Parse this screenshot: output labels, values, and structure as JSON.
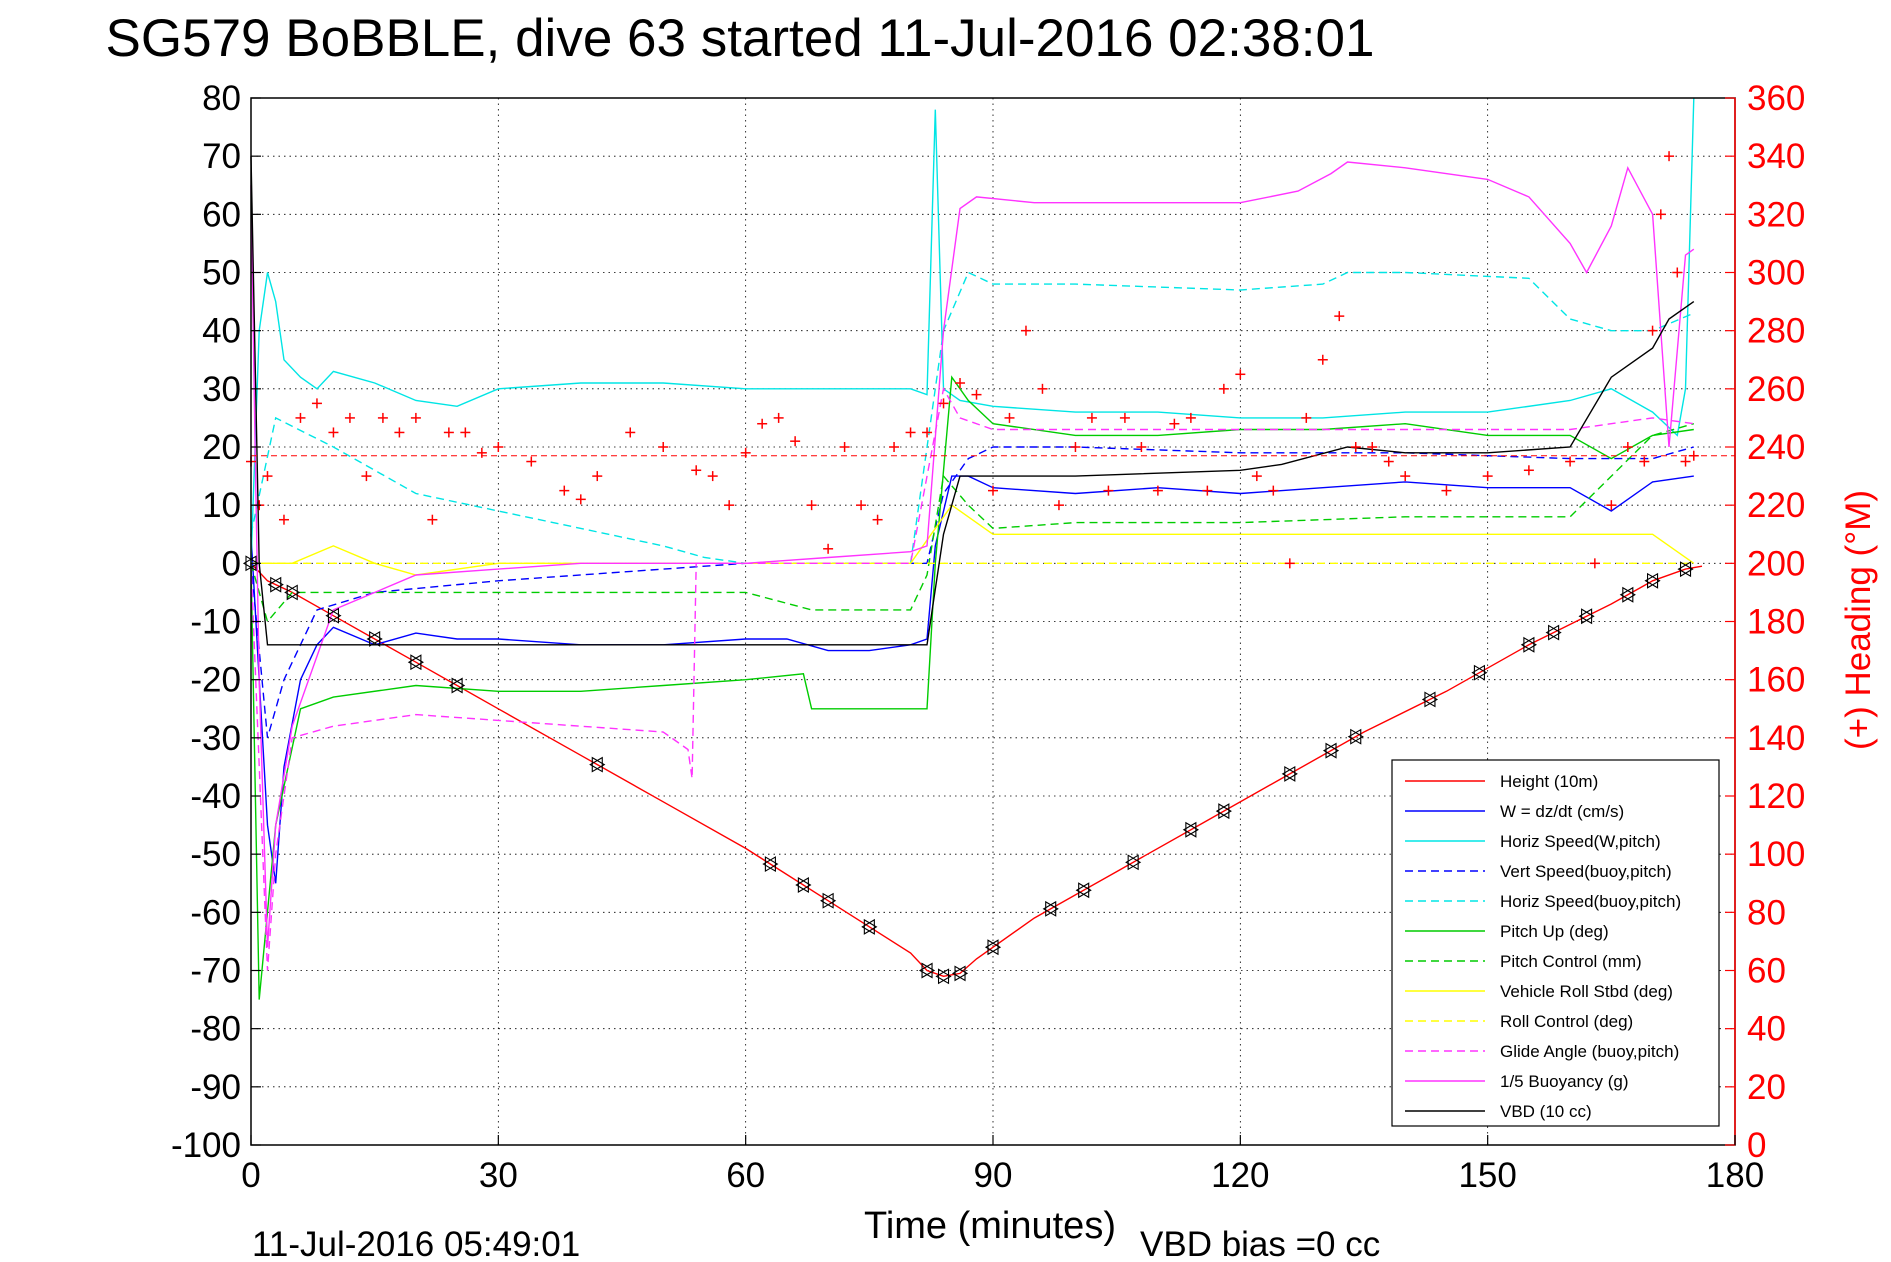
{
  "chart_data": {
    "type": "line",
    "title": "SG579 BoBBLE, dive 63 started 11-Jul-2016 02:38:01",
    "xlabel": "Time (minutes)",
    "ylabel_right": "(+) Heading (°M)",
    "footer_left": "11-Jul-2016 05:49:01",
    "footer_right": "VBD bias =0 cc",
    "xlim": [
      0,
      180
    ],
    "ylim": [
      -100,
      80
    ],
    "ylim_right": [
      0,
      360
    ],
    "x_ticks": [
      "0",
      "30",
      "60",
      "90",
      "120",
      "150",
      "180"
    ],
    "y_ticks": [
      "80",
      "70",
      "60",
      "50",
      "40",
      "30",
      "20",
      "10",
      "0",
      "-10",
      "-20",
      "-30",
      "-40",
      "-50",
      "-60",
      "-70",
      "-80",
      "-90",
      "-100"
    ],
    "y_ticks_right": [
      "360",
      "340",
      "320",
      "300",
      "280",
      "260",
      "240",
      "220",
      "200",
      "180",
      "160",
      "140",
      "120",
      "100",
      "80",
      "60",
      "40",
      "20",
      "0"
    ],
    "grid": true,
    "legend_position": "bottom-right",
    "series": [
      {
        "name": "Height (10m)",
        "color": "#ff0000",
        "style": "solid",
        "x": [
          0,
          2,
          5,
          10,
          15,
          20,
          25,
          30,
          40,
          50,
          60,
          70,
          80,
          82,
          84,
          86,
          88,
          95,
          105,
          115,
          125,
          135,
          145,
          155,
          165,
          170,
          174,
          176
        ],
        "y": [
          0,
          -3,
          -5,
          -9,
          -13,
          -17,
          -21,
          -25,
          -33,
          -41,
          -49,
          -58,
          -67,
          -70,
          -71,
          -70.5,
          -68,
          -61,
          -53,
          -45,
          -37,
          -29,
          -22,
          -14,
          -7,
          -3,
          -1,
          -0.5
        ]
      },
      {
        "name": "W = dz/dt (cm/s)",
        "color": "#0000ff",
        "style": "solid",
        "x": [
          0,
          1,
          2,
          3,
          4,
          6,
          8,
          10,
          15,
          20,
          25,
          30,
          40,
          50,
          60,
          65,
          70,
          75,
          80,
          82,
          83,
          85,
          87,
          90,
          100,
          110,
          120,
          130,
          140,
          150,
          160,
          165,
          170,
          175
        ],
        "y": [
          5,
          -20,
          -45,
          -55,
          -35,
          -20,
          -14,
          -11,
          -14,
          -12,
          -13,
          -13,
          -14,
          -14,
          -13,
          -13,
          -15,
          -15,
          -14,
          -13,
          3,
          15,
          15,
          13,
          12,
          13,
          12,
          13,
          14,
          13,
          13,
          9,
          14,
          15
        ]
      },
      {
        "name": "Horiz Speed(W,pitch)",
        "color": "#00e5e5",
        "style": "solid",
        "x": [
          0,
          1,
          2,
          3,
          4,
          6,
          8,
          10,
          15,
          20,
          25,
          30,
          40,
          50,
          60,
          70,
          80,
          82,
          83,
          84,
          86,
          90,
          100,
          110,
          120,
          130,
          140,
          150,
          160,
          165,
          170,
          173,
          174,
          175
        ],
        "y": [
          0,
          40,
          50,
          45,
          35,
          32,
          30,
          33,
          31,
          28,
          27,
          30,
          31,
          31,
          30,
          30,
          30,
          29,
          78,
          30,
          28,
          27,
          26,
          26,
          25,
          25,
          26,
          26,
          28,
          30,
          26,
          22,
          30,
          80
        ]
      },
      {
        "name": "Vert Speed(buoy,pitch)",
        "color": "#0000ff",
        "style": "dashed",
        "x": [
          0,
          2,
          4,
          8,
          15,
          30,
          50,
          60,
          70,
          80,
          82,
          84,
          87,
          90,
          100,
          120,
          140,
          160,
          170,
          175
        ],
        "y": [
          0,
          -30,
          -20,
          -8,
          -5,
          -3,
          -1,
          0,
          0,
          0,
          0,
          12,
          18,
          20,
          20,
          19,
          19,
          18,
          18,
          20
        ]
      },
      {
        "name": "Horiz Speed(buoy,pitch)",
        "color": "#00e5e5",
        "style": "dashed",
        "x": [
          0,
          3,
          10,
          20,
          30,
          40,
          50,
          55,
          60,
          80,
          84,
          87,
          90,
          100,
          120,
          130,
          133,
          140,
          155,
          160,
          165,
          170,
          175
        ],
        "y": [
          5,
          25,
          20,
          12,
          9,
          6,
          3,
          1,
          0,
          0,
          40,
          50,
          48,
          48,
          47,
          48,
          50,
          50,
          49,
          42,
          40,
          40,
          43
        ]
      },
      {
        "name": "Pitch Up (deg)",
        "color": "#00cc00",
        "style": "solid",
        "x": [
          0,
          1,
          3,
          6,
          10,
          20,
          30,
          40,
          50,
          60,
          67,
          68,
          75,
          82,
          83,
          85,
          87,
          90,
          100,
          110,
          120,
          130,
          140,
          150,
          160,
          165,
          170,
          175
        ],
        "y": [
          0,
          -75,
          -45,
          -25,
          -23,
          -21,
          -22,
          -22,
          -21,
          -20,
          -19,
          -25,
          -25,
          -25,
          0,
          32,
          28,
          24,
          22,
          22,
          23,
          23,
          24,
          22,
          22,
          18,
          22,
          23
        ]
      },
      {
        "name": "Pitch Control (mm)",
        "color": "#00cc00",
        "style": "dashed",
        "x": [
          0,
          2,
          5,
          20,
          40,
          60,
          68,
          80,
          82,
          84,
          87,
          90,
          100,
          120,
          140,
          160,
          170,
          175
        ],
        "y": [
          0,
          -10,
          -5,
          -5,
          -5,
          -5,
          -8,
          -8,
          -2,
          15,
          10,
          6,
          7,
          7,
          8,
          8,
          22,
          24
        ]
      },
      {
        "name": "Vehicle Roll Stbd (deg)",
        "color": "#ffff00",
        "style": "solid",
        "x": [
          0,
          5,
          10,
          15,
          20,
          30,
          40,
          50,
          60,
          70,
          80,
          85,
          90,
          100,
          110,
          120,
          130,
          140,
          150,
          160,
          170,
          175
        ],
        "y": [
          0,
          0,
          3,
          0,
          -2,
          0,
          0,
          0,
          0,
          0,
          0,
          10,
          5,
          5,
          5,
          5,
          5,
          5,
          5,
          5,
          5,
          0
        ]
      },
      {
        "name": "Roll Control (deg)",
        "color": "#ffff00",
        "style": "dashed",
        "x": [
          0,
          10,
          20,
          30,
          40,
          50,
          60,
          70,
          80,
          85,
          90,
          100,
          110,
          120,
          130,
          140,
          150,
          160,
          170,
          175
        ],
        "y": [
          0,
          0,
          0,
          0,
          0,
          0,
          0,
          0,
          0,
          0,
          0,
          0,
          0,
          0,
          0,
          0,
          0,
          0,
          0,
          0
        ]
      },
      {
        "name": "Glide Angle (buoy,pitch)",
        "color": "#ff33ff",
        "style": "dashed",
        "x": [
          0,
          2,
          3,
          5,
          10,
          20,
          30,
          40,
          50,
          53,
          53.5,
          54,
          60,
          80,
          84,
          86,
          90,
          100,
          120,
          140,
          160,
          170,
          175
        ],
        "y": [
          0,
          -70,
          -50,
          -30,
          -28,
          -26,
          -27,
          -28,
          -29,
          -32,
          -37,
          0,
          0,
          0,
          30,
          25,
          23,
          23,
          23,
          23,
          23,
          25,
          24
        ]
      },
      {
        "name": "1/5 Buoyancy (g)",
        "color": "#ff33ff",
        "style": "solid",
        "x": [
          0,
          0.5,
          1,
          2,
          3,
          5,
          10,
          20,
          30,
          40,
          50,
          60,
          70,
          80,
          82,
          84,
          86,
          88,
          95,
          100,
          110,
          120,
          127,
          131,
          133,
          140,
          150,
          155,
          160,
          162,
          165,
          167,
          170,
          172,
          174,
          175
        ],
        "y": [
          65,
          20,
          -20,
          -66,
          -45,
          -28,
          -8,
          -2,
          -1,
          0,
          0,
          0,
          1,
          2,
          3,
          40,
          61,
          63,
          62,
          62,
          62,
          62,
          64,
          67,
          69,
          68,
          66,
          63,
          55,
          50,
          58,
          68,
          60,
          20,
          53,
          54
        ]
      },
      {
        "name": "VBD (10 cc)",
        "color": "#000000",
        "style": "solid",
        "x": [
          0,
          1,
          2,
          30,
          60,
          80,
          82,
          84,
          86,
          100,
          120,
          125,
          133,
          140,
          150,
          160,
          165,
          170,
          172,
          175
        ],
        "y": [
          70,
          0,
          -14,
          -14,
          -14,
          -14,
          -14,
          5,
          15,
          15,
          16,
          17,
          20,
          19,
          19,
          20,
          32,
          37,
          42,
          45
        ]
      }
    ],
    "heading_series": {
      "name": "(+) Heading",
      "color": "#ff0000",
      "axis": "right",
      "x": [
        0,
        1,
        2,
        4,
        6,
        8,
        10,
        12,
        14,
        16,
        18,
        20,
        22,
        24,
        26,
        28,
        30,
        34,
        38,
        40,
        42,
        46,
        50,
        54,
        56,
        58,
        60,
        62,
        64,
        66,
        68,
        70,
        72,
        74,
        76,
        78,
        80,
        82,
        84,
        86,
        88,
        90,
        92,
        94,
        96,
        98,
        100,
        102,
        104,
        106,
        108,
        110,
        112,
        114,
        116,
        118,
        120,
        122,
        124,
        126,
        128,
        130,
        132,
        134,
        136,
        138,
        140,
        145,
        150,
        155,
        160,
        163,
        165,
        167,
        169,
        170,
        171,
        172,
        173,
        174,
        175
      ],
      "y": [
        235,
        220,
        230,
        215,
        250,
        255,
        245,
        250,
        230,
        250,
        245,
        250,
        215,
        245,
        245,
        238,
        240,
        235,
        225,
        222,
        230,
        245,
        240,
        232,
        230,
        220,
        238,
        248,
        250,
        242,
        220,
        205,
        240,
        220,
        215,
        240,
        245,
        245,
        255,
        262,
        258,
        225,
        250,
        280,
        260,
        220,
        240,
        250,
        225,
        250,
        240,
        225,
        248,
        250,
        225,
        260,
        265,
        230,
        225,
        200,
        250,
        270,
        285,
        240,
        240,
        235,
        230,
        225,
        230,
        232,
        235,
        200,
        220,
        240,
        235,
        280,
        320,
        340,
        300,
        235,
        237
      ]
    },
    "triangle_markers": {
      "x": [
        0,
        3,
        5,
        10,
        15,
        20,
        25,
        42,
        63,
        67,
        70,
        75,
        82,
        84,
        86,
        90,
        97,
        101,
        107,
        114,
        118,
        126,
        131,
        134,
        143,
        149,
        155,
        158,
        162,
        167,
        170,
        174
      ]
    }
  }
}
